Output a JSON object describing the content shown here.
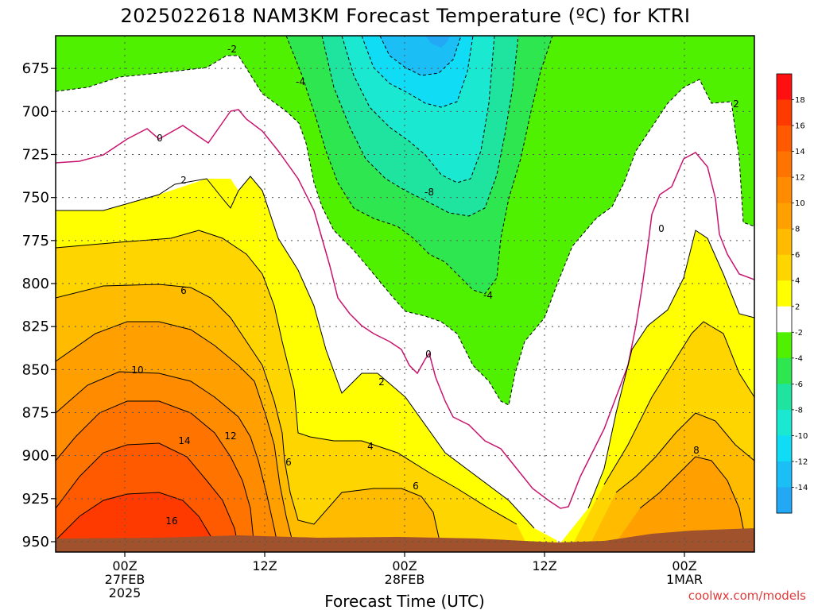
{
  "chart_data": {
    "type": "heatmap",
    "title": "2025022618 NAM3KM Forecast Temperature (ºC) for KTRI",
    "xlabel": "Forecast Time (UTC)",
    "credit": "coolwx.com/models",
    "y_ticks": [
      "675",
      "700",
      "725",
      "750",
      "775",
      "800",
      "825",
      "850",
      "875",
      "900",
      "925",
      "950"
    ],
    "y_values": [
      675,
      700,
      725,
      750,
      775,
      800,
      825,
      850,
      875,
      900,
      925,
      950
    ],
    "ylim": [
      956,
      656
    ],
    "x_ticks": [
      {
        "lines": [
          "00Z",
          "27FEB",
          "2025"
        ]
      },
      {
        "lines": [
          "12Z"
        ]
      },
      {
        "lines": [
          "00Z",
          "28FEB"
        ]
      },
      {
        "lines": [
          "12Z"
        ]
      },
      {
        "lines": [
          "00Z",
          "1MAR"
        ]
      }
    ],
    "colorbar": {
      "levels": [
        18,
        16,
        14,
        12,
        10,
        8,
        6,
        4,
        2,
        -2,
        -4,
        -6,
        -8,
        -10,
        -12,
        -14
      ],
      "labels": [
        "18",
        "16",
        "14",
        "12",
        "10",
        "8",
        "6",
        "4",
        "2",
        "-2",
        "-4",
        "-6",
        "-8",
        "-10",
        "-12",
        "-14"
      ],
      "colors": [
        "#ff1010",
        "#ff3a00",
        "#ff5a00",
        "#ff7400",
        "#ff8c00",
        "#ffa000",
        "#ffbb00",
        "#ffd500",
        "#ffff00",
        "#ffffff",
        "#4ff000",
        "#2de650",
        "#1fe4a0",
        "#1ae8d0",
        "#10dcf6",
        "#1cbef6",
        "#22a8f5"
      ]
    },
    "contour_labels": [
      {
        "text": "-2"
      },
      {
        "text": "-4"
      },
      {
        "text": "-8"
      },
      {
        "text": "-4"
      },
      {
        "text": "0"
      },
      {
        "text": "0"
      },
      {
        "text": "0"
      },
      {
        "text": "2"
      },
      {
        "text": "2"
      },
      {
        "text": "2"
      },
      {
        "text": "6"
      },
      {
        "text": "10"
      },
      {
        "text": "14"
      },
      {
        "text": "12"
      },
      {
        "text": "16"
      },
      {
        "text": "6"
      },
      {
        "text": "4"
      },
      {
        "text": "6"
      },
      {
        "text": "8"
      }
    ],
    "grid": true,
    "legend_position": "right"
  }
}
